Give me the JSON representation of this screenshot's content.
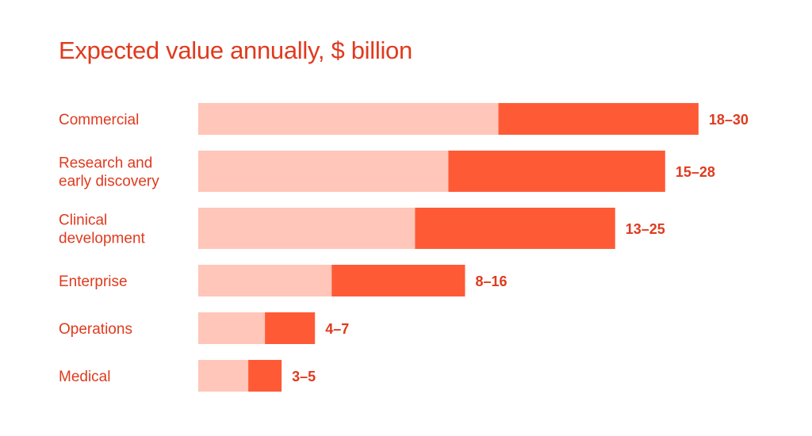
{
  "colors": {
    "text": "#E03A1E",
    "bar_low": "#FFC6B9",
    "bar_high": "#FF5A36",
    "background": "#FFFFFF"
  },
  "chart_data": {
    "type": "bar",
    "orientation": "horizontal",
    "stacked_range": true,
    "title": "Expected value annually, $ billion",
    "xlabel": "",
    "ylabel": "",
    "xlim": [
      0,
      30
    ],
    "grid": false,
    "categories": [
      [
        "Commercial"
      ],
      [
        "Research and",
        "early discovery"
      ],
      [
        "Clinical",
        "development"
      ],
      [
        "Enterprise"
      ],
      [
        "Operations"
      ],
      [
        "Medical"
      ]
    ],
    "series": [
      {
        "values": [
          18,
          15,
          13,
          8,
          4,
          3
        ]
      },
      {
        "values": [
          30,
          28,
          25,
          16,
          7,
          5
        ]
      }
    ],
    "value_labels": [
      "18–30",
      "15–28",
      "13–25",
      "8–16",
      "4–7",
      "3–5"
    ]
  }
}
